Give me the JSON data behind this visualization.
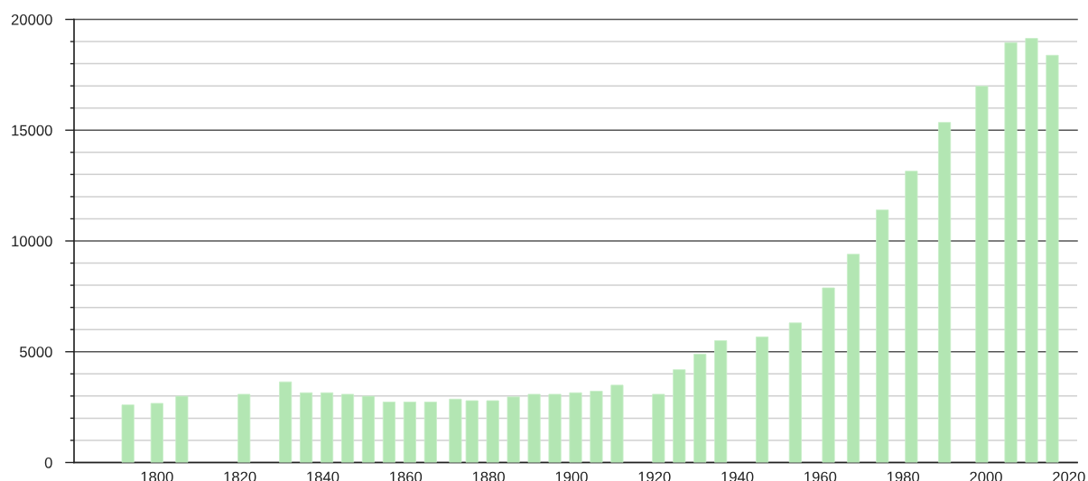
{
  "chart_data": {
    "type": "bar",
    "x": [
      1793,
      1800,
      1806,
      1821,
      1831,
      1836,
      1841,
      1846,
      1851,
      1856,
      1861,
      1866,
      1872,
      1876,
      1881,
      1886,
      1891,
      1896,
      1901,
      1906,
      1911,
      1921,
      1926,
      1931,
      1936,
      1946,
      1954,
      1962,
      1968,
      1975,
      1982,
      1990,
      1999,
      2006,
      2011,
      2016
    ],
    "values": [
      2600,
      2670,
      2990,
      3080,
      3640,
      3150,
      3150,
      3080,
      2990,
      2730,
      2730,
      2730,
      2860,
      2790,
      2790,
      2960,
      3080,
      3080,
      3150,
      3220,
      3490,
      3080,
      4190,
      4890,
      5500,
      5670,
      6300,
      7880,
      9400,
      11400,
      13150,
      15350,
      16990,
      18950,
      19140,
      18380
    ],
    "color": "#b3e6b3",
    "xlim": [
      1780,
      2022
    ],
    "xticks": [
      1800,
      1820,
      1840,
      1860,
      1880,
      1900,
      1920,
      1940,
      1960,
      1980,
      2000,
      2020
    ],
    "ylim": [
      0,
      20000
    ],
    "yticks": [
      0,
      {
        "value": 1000,
        "label": null
      },
      {
        "value": 2000,
        "label": null
      },
      {
        "value": 3000,
        "label": null
      },
      {
        "value": 4000,
        "label": null
      },
      5000,
      {
        "value": 6000,
        "label": null
      },
      {
        "value": 7000,
        "label": null
      },
      {
        "value": 8000,
        "label": null
      },
      {
        "value": 9000,
        "label": null
      },
      10000,
      {
        "value": 11000,
        "label": null
      },
      {
        "value": 12000,
        "label": null
      },
      {
        "value": 13000,
        "label": null
      },
      {
        "value": 14000,
        "label": null
      },
      15000,
      {
        "value": 16000,
        "label": null
      },
      {
        "value": 17000,
        "label": null
      },
      {
        "value": 18000,
        "label": null
      },
      {
        "value": 19000,
        "label": null
      },
      20000
    ],
    "grid": "y"
  }
}
